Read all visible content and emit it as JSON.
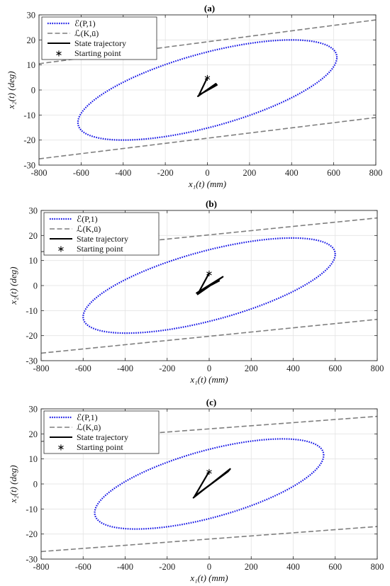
{
  "colors": {
    "ellipse": "#1414e6",
    "bound": "#7f7f7f",
    "trajectory": "#000000",
    "grid": "#e3e3e3",
    "axes": "#262626"
  },
  "chart_data": [
    {
      "type": "line",
      "title": "(a)",
      "xlabel": "x₁(t) (mm)",
      "ylabel": "x₂(t) (deg)",
      "xlim": [
        -800,
        800
      ],
      "ylim": [
        -30,
        30
      ],
      "xticks": [
        -800,
        -600,
        -400,
        -200,
        0,
        200,
        400,
        600,
        800
      ],
      "yticks": [
        -30,
        -20,
        -10,
        0,
        10,
        20,
        30
      ],
      "grid": true,
      "legend_position": "top-left",
      "legend": [
        "ℰ(P,1)",
        "ℒ(K,ū)",
        "State trajectory",
        "Starting point"
      ],
      "ellipse": {
        "center": [
          0,
          0
        ],
        "rightmost": [
          615,
          13
        ],
        "topmost": [
          400,
          20
        ]
      },
      "bound_lines": [
        {
          "x": [
            -800,
            800
          ],
          "y": [
            10.5,
            28
          ]
        },
        {
          "x": [
            -800,
            800
          ],
          "y": [
            -27.5,
            -11
          ]
        }
      ],
      "trajectory": {
        "x": [
          0,
          -40,
          45,
          40,
          -45,
          -30,
          35
        ],
        "y": [
          5,
          -2,
          2,
          2.5,
          -2.5,
          -1.5,
          1.5
        ]
      },
      "start_point": [
        0,
        5
      ]
    },
    {
      "type": "line",
      "title": "(b)",
      "xlabel": "x₁(t) (mm)",
      "ylabel": "x₂(t) (deg)",
      "xlim": [
        -800,
        800
      ],
      "ylim": [
        -30,
        30
      ],
      "xticks": [
        -800,
        -600,
        -400,
        -200,
        0,
        200,
        400,
        600,
        800
      ],
      "yticks": [
        -30,
        -20,
        -10,
        0,
        10,
        20,
        30
      ],
      "grid": true,
      "legend_position": "top-left",
      "legend": [
        "ℰ(P,1)",
        "ℒ(K,ū)",
        "State trajectory",
        "Starting point"
      ],
      "ellipse": {
        "center": [
          0,
          0
        ],
        "rightmost": [
          600,
          12.5
        ],
        "topmost": [
          380,
          19
        ]
      },
      "bound_lines": [
        {
          "x": [
            -800,
            800
          ],
          "y": [
            13.5,
            27
          ]
        },
        {
          "x": [
            -800,
            800
          ],
          "y": [
            -27,
            -13.5
          ]
        }
      ],
      "trajectory": {
        "x": [
          0,
          -55,
          65,
          55,
          -60,
          -40,
          50
        ],
        "y": [
          5,
          -3.5,
          3.5,
          3,
          -3,
          -2,
          2
        ]
      },
      "start_point": [
        0,
        5
      ]
    },
    {
      "type": "line",
      "title": "(c)",
      "xlabel": "x₁(t) (mm)",
      "ylabel": "x₂(t) (deg)",
      "xlim": [
        -800,
        800
      ],
      "ylim": [
        -30,
        30
      ],
      "xticks": [
        -800,
        -600,
        -400,
        -200,
        0,
        200,
        400,
        600,
        800
      ],
      "yticks": [
        -30,
        -20,
        -10,
        0,
        10,
        20,
        30
      ],
      "grid": true,
      "legend_position": "top-left",
      "legend": [
        "ℰ(P,1)",
        "ℒ(K,ū)",
        "State trajectory",
        "Starting point"
      ],
      "ellipse": {
        "center": [
          0,
          0
        ],
        "rightmost": [
          545,
          11.5
        ],
        "topmost": [
          360,
          18
        ]
      },
      "bound_lines": [
        {
          "x": [
            -800,
            800
          ],
          "y": [
            17,
            27
          ]
        },
        {
          "x": [
            -800,
            800
          ],
          "y": [
            -27,
            -17
          ]
        }
      ],
      "trajectory": {
        "x": [
          0,
          -70,
          90,
          100,
          -75,
          -55,
          80
        ],
        "y": [
          5,
          -5,
          5,
          6,
          -5.5,
          -4,
          4.5
        ]
      },
      "start_point": [
        0,
        5
      ]
    }
  ]
}
